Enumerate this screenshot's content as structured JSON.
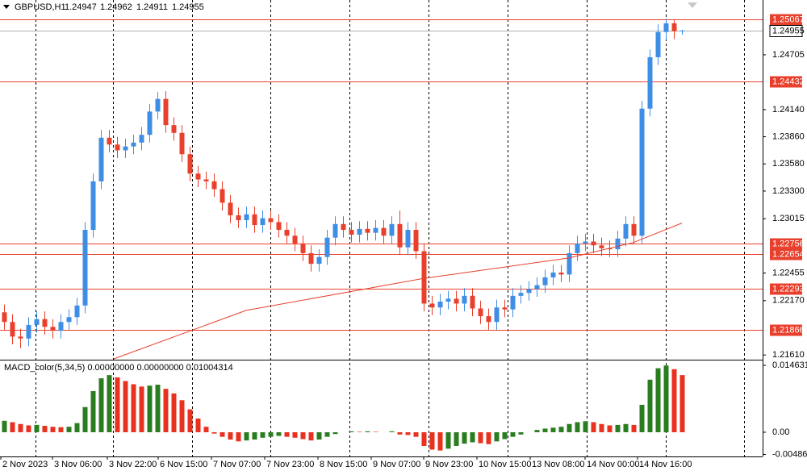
{
  "chart_data": {
    "type": "candlestick",
    "title": "GBPUSD,H1",
    "xlim": [
      -0.5,
      94
    ],
    "x_labels": [
      {
        "value": -0.4,
        "label": "2 Nov 2023"
      },
      {
        "value": 6,
        "label": "3 Nov 06:00"
      },
      {
        "value": 12.8,
        "label": "3 Nov 22:00"
      },
      {
        "value": 19.1,
        "label": "6 Nov 15:00"
      },
      {
        "value": 25.7,
        "label": "7 Nov 07:00"
      },
      {
        "value": 32.3,
        "label": "7 Nov 23:00"
      },
      {
        "value": 38.9,
        "label": "8 Nov 15:00"
      },
      {
        "value": 45.5,
        "label": "9 Nov 07:00"
      },
      {
        "value": 52,
        "label": "9 Nov 23:00"
      },
      {
        "value": 58.6,
        "label": "10 Nov 15:00"
      },
      {
        "value": 65.2,
        "label": "13 Nov 08:00"
      },
      {
        "value": 72,
        "label": "14 Nov 00:00"
      },
      {
        "value": 78.5,
        "label": "14 Nov 16:00"
      }
    ],
    "xgrid": [
      3.9,
      13.5,
      23.3,
      33,
      42.8,
      52.6,
      62.4,
      72.2,
      82,
      91.7
    ],
    "ylim": [
      1.2157,
      1.2527
    ],
    "yticks": [
      1.24705,
      {
        "value": 1.2414,
        "label": "1.24140"
      },
      {
        "value": 1.2386,
        "label": "1.23860"
      },
      {
        "value": 1.2358,
        "label": "1.23580"
      },
      {
        "value": 1.233,
        "label": "1.23300"
      },
      1.23015,
      1.22455,
      {
        "value": 1.2217,
        "label": "1.22170"
      },
      {
        "value": 1.2161,
        "label": "1.21610"
      }
    ],
    "up_color": "#3f8ee6",
    "down_color": "#e8402c",
    "open": [
      1.2205,
      1.2195,
      1.218,
      1.2178,
      1.2192,
      1.2198,
      1.219,
      1.2186,
      1.2195,
      1.22,
      1.2212,
      1.229,
      1.234,
      1.2385,
      1.2378,
      1.2372,
      1.2376,
      1.238,
      1.2388,
      1.2412,
      1.2425,
      1.2398,
      1.239,
      1.2368,
      1.2348,
      1.2342,
      1.234,
      1.2332,
      1.2318,
      1.2305,
      1.23,
      1.2306,
      1.2295,
      1.2302,
      1.2298,
      1.229,
      1.2284,
      1.2276,
      1.2266,
      1.2255,
      1.2262,
      1.2282,
      1.2296,
      1.229,
      1.2285,
      1.2291,
      1.2287,
      1.2292,
      1.2284,
      1.2296,
      1.2272,
      1.229,
      1.2268,
      1.2214,
      1.221,
      1.2216,
      1.2219,
      1.2214,
      1.2222,
      1.2209,
      1.2201,
      1.2195,
      1.221,
      1.2208,
      1.2222,
      1.2225,
      1.2229,
      1.2233,
      1.2241,
      1.2246,
      1.2244,
      1.2266,
      1.2276,
      1.2278,
      1.2274,
      1.2271,
      1.227,
      1.2281,
      1.2296,
      1.2284,
      1.2415,
      1.2468,
      1.2494,
      1.2503,
      1.24947
    ],
    "high": [
      1.2213,
      1.2203,
      1.2188,
      1.22,
      1.2206,
      1.2206,
      1.2198,
      1.2203,
      1.2208,
      1.222,
      1.2298,
      1.2348,
      1.2393,
      1.2393,
      1.2386,
      1.2384,
      1.2388,
      1.2396,
      1.242,
      1.2432,
      1.2433,
      1.2406,
      1.2398,
      1.2376,
      1.2356,
      1.235,
      1.2348,
      1.234,
      1.2326,
      1.2313,
      1.2314,
      1.2314,
      1.231,
      1.231,
      1.2306,
      1.2298,
      1.2292,
      1.2284,
      1.2274,
      1.227,
      1.229,
      1.2304,
      1.2304,
      1.2298,
      1.2299,
      1.2299,
      1.23,
      1.23,
      1.2304,
      1.231,
      1.2298,
      1.2298,
      1.2276,
      1.2222,
      1.2224,
      1.2227,
      1.2227,
      1.223,
      1.223,
      1.2217,
      1.2209,
      1.2218,
      1.2218,
      1.223,
      1.2233,
      1.2237,
      1.2241,
      1.2249,
      1.2254,
      1.2254,
      1.2274,
      1.2284,
      1.2286,
      1.2286,
      1.2282,
      1.2279,
      1.2289,
      1.2304,
      1.2304,
      1.2423,
      1.2476,
      1.2502,
      1.2508,
      1.2507,
      1.24962
    ],
    "low": [
      1.2187,
      1.2172,
      1.2168,
      1.217,
      1.2184,
      1.2182,
      1.2178,
      1.2178,
      1.2187,
      1.2192,
      1.2204,
      1.2282,
      1.2332,
      1.237,
      1.2364,
      1.2364,
      1.2368,
      1.2372,
      1.238,
      1.2404,
      1.239,
      1.2382,
      1.236,
      1.234,
      1.2334,
      1.2332,
      1.2324,
      1.231,
      1.2297,
      1.2292,
      1.2292,
      1.2287,
      1.2287,
      1.229,
      1.2282,
      1.2276,
      1.2268,
      1.2258,
      1.2247,
      1.2247,
      1.2254,
      1.2274,
      1.2282,
      1.2277,
      1.2277,
      1.2279,
      1.2279,
      1.2276,
      1.2276,
      1.2264,
      1.2264,
      1.226,
      1.2206,
      1.2202,
      1.2202,
      1.2208,
      1.2206,
      1.2206,
      1.2201,
      1.2193,
      1.2187,
      1.2187,
      1.22,
      1.22,
      1.2214,
      1.2217,
      1.2221,
      1.2225,
      1.2233,
      1.2236,
      1.2236,
      1.2258,
      1.2268,
      1.2266,
      1.2263,
      1.2262,
      1.2262,
      1.2273,
      1.2276,
      1.2276,
      1.2407,
      1.246,
      1.2486,
      1.24867,
      1.24911
    ],
    "close": [
      1.2195,
      1.218,
      1.2178,
      1.2192,
      1.2198,
      1.219,
      1.2186,
      1.2195,
      1.22,
      1.2212,
      1.229,
      1.234,
      1.2385,
      1.2378,
      1.2372,
      1.2376,
      1.238,
      1.2388,
      1.2412,
      1.2425,
      1.2398,
      1.239,
      1.2368,
      1.2348,
      1.2342,
      1.234,
      1.2332,
      1.2318,
      1.2305,
      1.23,
      1.2306,
      1.2295,
      1.2302,
      1.2298,
      1.229,
      1.2284,
      1.2276,
      1.2266,
      1.2255,
      1.2262,
      1.2282,
      1.2296,
      1.229,
      1.2285,
      1.2291,
      1.2287,
      1.2292,
      1.2284,
      1.2296,
      1.2272,
      1.229,
      1.2268,
      1.2214,
      1.221,
      1.2216,
      1.2219,
      1.2214,
      1.2222,
      1.2209,
      1.2201,
      1.2195,
      1.221,
      1.2208,
      1.2222,
      1.2225,
      1.2229,
      1.2233,
      1.2241,
      1.2246,
      1.2244,
      1.2266,
      1.2276,
      1.2278,
      1.2274,
      1.2271,
      1.227,
      1.2281,
      1.2296,
      1.2284,
      1.2415,
      1.2468,
      1.2494,
      1.2503,
      1.24947,
      1.24955
    ],
    "levels": {
      "color": "#e8402c",
      "values": [
        1.25067,
        1.24432,
        1.22756,
        1.22654,
        1.22293,
        1.21866
      ]
    },
    "current_price_color": "#b0b0b0",
    "ma": {
      "color": "#e8402c",
      "x": [
        13.6,
        30,
        52,
        70,
        78,
        84
      ],
      "values": [
        1.2157,
        1.2207,
        1.224,
        1.2261,
        1.2277,
        1.2297
      ]
    },
    "macd": {
      "title": "MACD_color(5,34,5) 0.00000000 0.00000000 0.01004314",
      "ylim": [
        -0.0053,
        0.0157
      ],
      "yticks": [
        0.0146316,
        {
          "value": 0,
          "label": "0.00"
        },
        -0.0048615
      ],
      "up_color": "#2a7d1e",
      "down_color": "#e8311f",
      "values": [
        0.0025,
        0.0022,
        0.0018,
        0.0015,
        0.0016,
        0.0014,
        0.0012,
        0.0011,
        0.0012,
        0.002,
        0.0055,
        0.009,
        0.0118,
        0.0125,
        0.012,
        0.0112,
        0.0105,
        0.01,
        0.0102,
        0.0104,
        0.0095,
        0.0085,
        0.007,
        0.005,
        0.003,
        0.0012,
        -0.0003,
        -0.001,
        -0.0016,
        -0.002,
        -0.0018,
        -0.0016,
        -0.0012,
        -0.001,
        -0.0008,
        -0.001,
        -0.0012,
        -0.0015,
        -0.0018,
        -0.0016,
        -0.001,
        -0.0004,
        0.0,
        0.0002,
        0.0001,
        0.0002,
        0.0001,
        0.0,
        0.0002,
        -0.0005,
        -0.0006,
        -0.001,
        -0.003,
        -0.0038,
        -0.004,
        -0.0036,
        -0.003,
        -0.0025,
        -0.0022,
        -0.0024,
        -0.0026,
        -0.002,
        -0.0015,
        -0.001,
        -0.0005,
        0.0,
        0.0005,
        0.0008,
        0.001,
        0.0012,
        0.0018,
        0.0022,
        0.0024,
        0.0022,
        0.0018,
        0.0015,
        0.0016,
        0.0018,
        0.0016,
        0.006,
        0.0115,
        0.014,
        0.0146,
        0.0138,
        0.0125
      ]
    }
  }
}
